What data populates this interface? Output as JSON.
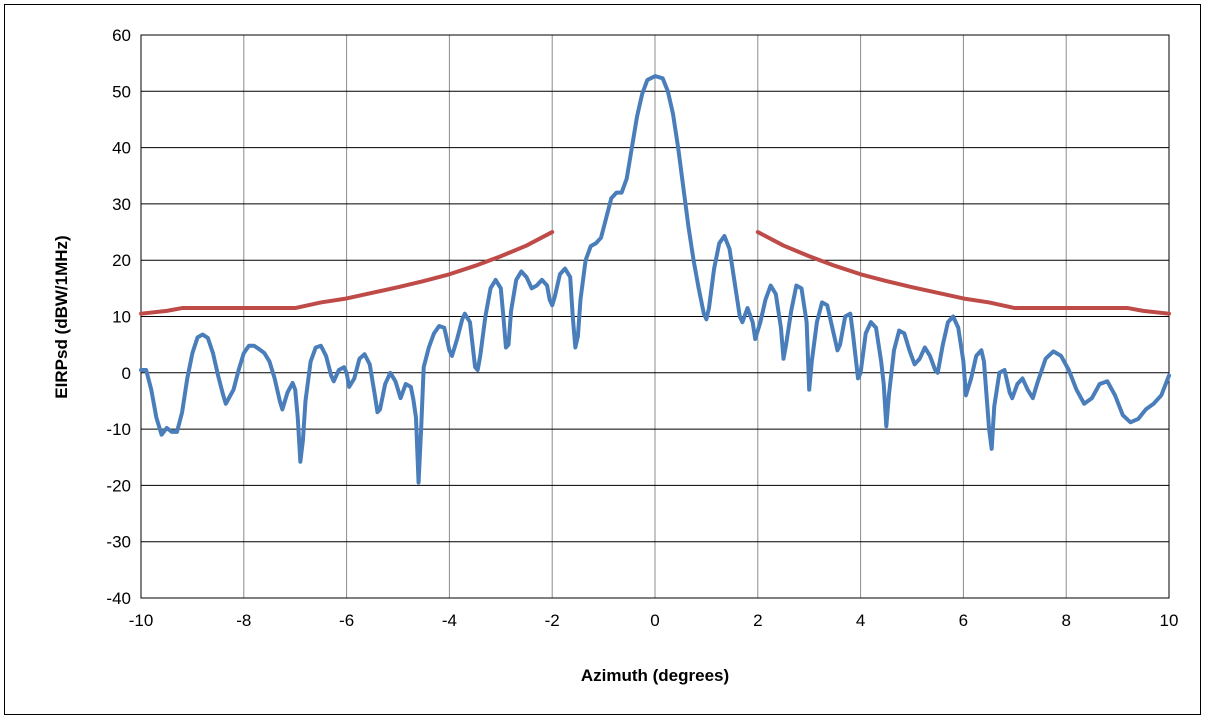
{
  "chart_data": {
    "type": "line",
    "title": "",
    "xlabel": "Azimuth (degrees)",
    "ylabel": "EIRPsd (dBW/1MHz)",
    "xlim": [
      -10,
      10
    ],
    "ylim": [
      -40,
      60
    ],
    "x_ticks": [
      "-10",
      "-8",
      "-6",
      "-4",
      "-2",
      "0",
      "2",
      "4",
      "6",
      "8",
      "10"
    ],
    "y_ticks": [
      "60",
      "50",
      "40",
      "30",
      "20",
      "10",
      "0",
      "-10",
      "-20",
      "-30",
      "-40"
    ],
    "x_tick_values": [
      -10,
      -8,
      -6,
      -4,
      -2,
      0,
      2,
      4,
      6,
      8,
      10
    ],
    "y_tick_values": [
      60,
      50,
      40,
      30,
      20,
      10,
      0,
      -10,
      -20,
      -30,
      -40
    ],
    "grid": true,
    "legend": "none",
    "series": [
      {
        "color": "#4a7ebb",
        "points": [
          [
            -10.0,
            0.5
          ],
          [
            -9.9,
            0.5
          ],
          [
            -9.8,
            -3
          ],
          [
            -9.7,
            -8
          ],
          [
            -9.6,
            -11
          ],
          [
            -9.5,
            -9.8
          ],
          [
            -9.4,
            -10.5
          ],
          [
            -9.3,
            -10.5
          ],
          [
            -9.2,
            -7
          ],
          [
            -9.1,
            -1
          ],
          [
            -9.0,
            3.5
          ],
          [
            -8.9,
            6.3
          ],
          [
            -8.8,
            6.8
          ],
          [
            -8.7,
            6.2
          ],
          [
            -8.6,
            3.5
          ],
          [
            -8.5,
            -0.5
          ],
          [
            -8.4,
            -4
          ],
          [
            -8.35,
            -5.5
          ],
          [
            -8.2,
            -3
          ],
          [
            -8.1,
            0.5
          ],
          [
            -8.0,
            3.5
          ],
          [
            -7.9,
            4.8
          ],
          [
            -7.8,
            4.8
          ],
          [
            -7.7,
            4.2
          ],
          [
            -7.6,
            3.5
          ],
          [
            -7.5,
            2
          ],
          [
            -7.4,
            -1
          ],
          [
            -7.3,
            -5
          ],
          [
            -7.25,
            -6.5
          ],
          [
            -7.15,
            -3.5
          ],
          [
            -7.05,
            -1.8
          ],
          [
            -7.0,
            -3
          ],
          [
            -6.95,
            -8
          ],
          [
            -6.9,
            -15.8
          ],
          [
            -6.85,
            -12
          ],
          [
            -6.8,
            -5
          ],
          [
            -6.7,
            2
          ],
          [
            -6.6,
            4.5
          ],
          [
            -6.5,
            4.8
          ],
          [
            -6.4,
            3
          ],
          [
            -6.3,
            -0.5
          ],
          [
            -6.25,
            -1.5
          ],
          [
            -6.15,
            0.5
          ],
          [
            -6.05,
            1
          ],
          [
            -6.0,
            0
          ],
          [
            -5.95,
            -2.5
          ],
          [
            -5.85,
            -1
          ],
          [
            -5.75,
            2.5
          ],
          [
            -5.65,
            3.3
          ],
          [
            -5.55,
            1.5
          ],
          [
            -5.45,
            -4
          ],
          [
            -5.4,
            -7
          ],
          [
            -5.35,
            -6.5
          ],
          [
            -5.25,
            -2
          ],
          [
            -5.15,
            0
          ],
          [
            -5.05,
            -1.5
          ],
          [
            -4.95,
            -4.5
          ],
          [
            -4.85,
            -2
          ],
          [
            -4.75,
            -2.5
          ],
          [
            -4.7,
            -4.8
          ],
          [
            -4.65,
            -8
          ],
          [
            -4.6,
            -19.5
          ],
          [
            -4.55,
            -10
          ],
          [
            -4.5,
            1
          ],
          [
            -4.4,
            4.5
          ],
          [
            -4.3,
            7
          ],
          [
            -4.2,
            8.3
          ],
          [
            -4.1,
            8
          ],
          [
            -4.0,
            4
          ],
          [
            -3.95,
            3
          ],
          [
            -3.85,
            6
          ],
          [
            -3.75,
            9.5
          ],
          [
            -3.7,
            10.5
          ],
          [
            -3.6,
            9
          ],
          [
            -3.55,
            5
          ],
          [
            -3.5,
            1
          ],
          [
            -3.45,
            0.5
          ],
          [
            -3.4,
            3
          ],
          [
            -3.3,
            10
          ],
          [
            -3.2,
            15
          ],
          [
            -3.1,
            16.5
          ],
          [
            -3.0,
            15
          ],
          [
            -2.95,
            10
          ],
          [
            -2.9,
            4.5
          ],
          [
            -2.85,
            5
          ],
          [
            -2.8,
            11
          ],
          [
            -2.7,
            16.5
          ],
          [
            -2.6,
            18
          ],
          [
            -2.5,
            17
          ],
          [
            -2.4,
            15
          ],
          [
            -2.3,
            15.5
          ],
          [
            -2.2,
            16.5
          ],
          [
            -2.1,
            15.5
          ],
          [
            -2.05,
            13
          ],
          [
            -2.0,
            12
          ],
          [
            -1.95,
            13.5
          ],
          [
            -1.85,
            17.5
          ],
          [
            -1.75,
            18.5
          ],
          [
            -1.65,
            17
          ],
          [
            -1.6,
            10
          ],
          [
            -1.55,
            4.5
          ],
          [
            -1.5,
            6.5
          ],
          [
            -1.45,
            13
          ],
          [
            -1.35,
            20
          ],
          [
            -1.25,
            22.5
          ],
          [
            -1.15,
            23
          ],
          [
            -1.05,
            24
          ],
          [
            -0.95,
            27.5
          ],
          [
            -0.85,
            31
          ],
          [
            -0.75,
            32
          ],
          [
            -0.65,
            32
          ],
          [
            -0.55,
            34.5
          ],
          [
            -0.45,
            40
          ],
          [
            -0.35,
            45.5
          ],
          [
            -0.25,
            49.5
          ],
          [
            -0.15,
            52
          ],
          [
            0.0,
            52.7
          ],
          [
            0.15,
            52.3
          ],
          [
            0.25,
            50
          ],
          [
            0.35,
            46
          ],
          [
            0.45,
            40
          ],
          [
            0.55,
            33
          ],
          [
            0.65,
            26
          ],
          [
            0.75,
            20
          ],
          [
            0.85,
            15
          ],
          [
            0.95,
            10.5
          ],
          [
            1.0,
            9.5
          ],
          [
            1.05,
            11.5
          ],
          [
            1.15,
            18.5
          ],
          [
            1.25,
            23
          ],
          [
            1.35,
            24.3
          ],
          [
            1.45,
            22
          ],
          [
            1.55,
            16
          ],
          [
            1.65,
            10
          ],
          [
            1.7,
            9
          ],
          [
            1.8,
            11.5
          ],
          [
            1.9,
            9
          ],
          [
            1.95,
            6
          ],
          [
            2.05,
            9
          ],
          [
            2.15,
            13
          ],
          [
            2.25,
            15.5
          ],
          [
            2.35,
            14
          ],
          [
            2.45,
            8
          ],
          [
            2.5,
            2.5
          ],
          [
            2.55,
            5
          ],
          [
            2.65,
            11
          ],
          [
            2.75,
            15.5
          ],
          [
            2.85,
            15
          ],
          [
            2.95,
            9
          ],
          [
            3.0,
            -3
          ],
          [
            3.05,
            2
          ],
          [
            3.15,
            9
          ],
          [
            3.25,
            12.5
          ],
          [
            3.35,
            12
          ],
          [
            3.45,
            8
          ],
          [
            3.55,
            4
          ],
          [
            3.6,
            5
          ],
          [
            3.7,
            10
          ],
          [
            3.8,
            10.5
          ],
          [
            3.85,
            7
          ],
          [
            3.95,
            -1
          ],
          [
            4.0,
            0
          ],
          [
            4.1,
            7
          ],
          [
            4.2,
            9
          ],
          [
            4.3,
            8
          ],
          [
            4.4,
            2
          ],
          [
            4.45,
            -2
          ],
          [
            4.5,
            -9.5
          ],
          [
            4.55,
            -4
          ],
          [
            4.65,
            4
          ],
          [
            4.75,
            7.5
          ],
          [
            4.85,
            7
          ],
          [
            4.95,
            4
          ],
          [
            5.05,
            1.5
          ],
          [
            5.15,
            2.5
          ],
          [
            5.25,
            4.5
          ],
          [
            5.35,
            3
          ],
          [
            5.45,
            0.5
          ],
          [
            5.5,
            0
          ],
          [
            5.6,
            5
          ],
          [
            5.7,
            9
          ],
          [
            5.8,
            10
          ],
          [
            5.9,
            8
          ],
          [
            6.0,
            2
          ],
          [
            6.05,
            -4
          ],
          [
            6.15,
            -1
          ],
          [
            6.25,
            3
          ],
          [
            6.35,
            4
          ],
          [
            6.4,
            2
          ],
          [
            6.5,
            -10
          ],
          [
            6.55,
            -13.5
          ],
          [
            6.6,
            -6
          ],
          [
            6.7,
            0
          ],
          [
            6.8,
            0.5
          ],
          [
            6.9,
            -3.5
          ],
          [
            6.95,
            -4.5
          ],
          [
            7.05,
            -2
          ],
          [
            7.15,
            -1
          ],
          [
            7.25,
            -3
          ],
          [
            7.35,
            -4.5
          ],
          [
            7.45,
            -1.5
          ],
          [
            7.6,
            2.5
          ],
          [
            7.75,
            3.8
          ],
          [
            7.9,
            3
          ],
          [
            8.05,
            0.5
          ],
          [
            8.2,
            -3
          ],
          [
            8.35,
            -5.5
          ],
          [
            8.5,
            -4.5
          ],
          [
            8.65,
            -2
          ],
          [
            8.8,
            -1.5
          ],
          [
            8.95,
            -4
          ],
          [
            9.1,
            -7.5
          ],
          [
            9.25,
            -8.8
          ],
          [
            9.4,
            -8.2
          ],
          [
            9.55,
            -6.5
          ],
          [
            9.7,
            -5.5
          ],
          [
            9.85,
            -4
          ],
          [
            10.0,
            -0.5
          ]
        ]
      },
      {
        "color": "#be4b48",
        "segments": [
          [
            [
              -10,
              10.5
            ],
            [
              -9.5,
              11
            ],
            [
              -9.2,
              11.5
            ],
            [
              -7,
              11.5
            ],
            [
              -6.5,
              12.5
            ],
            [
              -6,
              13.2
            ],
            [
              -5.5,
              14.2
            ],
            [
              -5,
              15.2
            ],
            [
              -4.5,
              16.3
            ],
            [
              -4,
              17.5
            ],
            [
              -3.5,
              19
            ],
            [
              -3,
              20.7
            ],
            [
              -2.5,
              22.6
            ],
            [
              -2,
              25
            ]
          ],
          [
            [
              2,
              25
            ],
            [
              2.5,
              22.6
            ],
            [
              3,
              20.7
            ],
            [
              3.5,
              19
            ],
            [
              4,
              17.5
            ],
            [
              4.5,
              16.3
            ],
            [
              5,
              15.2
            ],
            [
              5.5,
              14.2
            ],
            [
              6,
              13.2
            ],
            [
              6.5,
              12.5
            ],
            [
              7,
              11.5
            ],
            [
              9.2,
              11.5
            ],
            [
              9.5,
              11
            ],
            [
              10,
              10.5
            ]
          ]
        ]
      }
    ]
  }
}
